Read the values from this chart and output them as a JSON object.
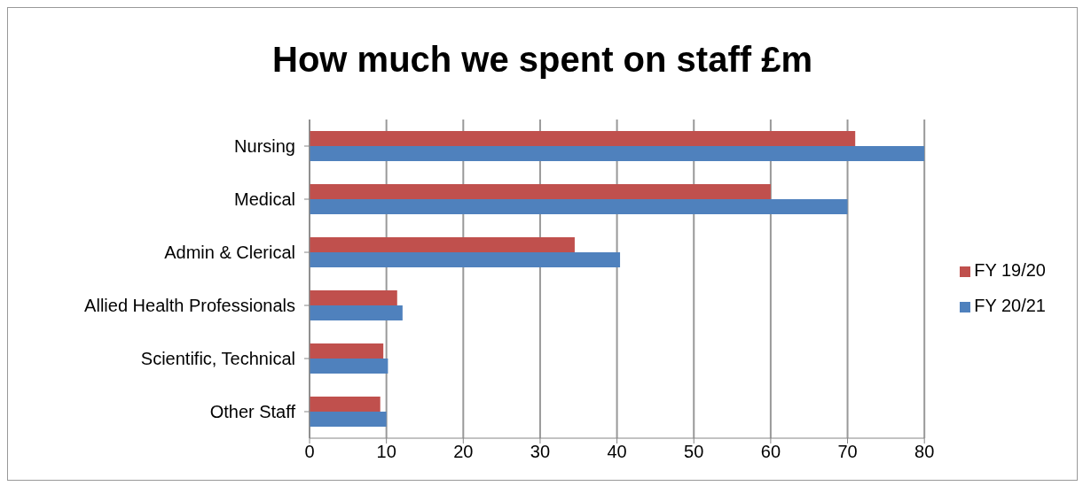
{
  "chart_data": {
    "type": "bar",
    "orientation": "horizontal",
    "title": "How much we spent on staff £m",
    "categories": [
      "Nursing",
      "Medical",
      "Admin & Clerical",
      "Allied Health Professionals",
      "Scientific, Technical",
      "Other Staff"
    ],
    "series": [
      {
        "name": "FY 19/20",
        "color": "#c0504d",
        "values": [
          71,
          60,
          34.5,
          11.4,
          9.6,
          9.2
        ]
      },
      {
        "name": "FY 20/21",
        "color": "#4f81bd",
        "values": [
          80,
          70,
          40.4,
          12.1,
          10.2,
          10
        ]
      }
    ],
    "xlim": [
      0,
      80
    ],
    "xticks": [
      0,
      10,
      20,
      30,
      40,
      50,
      60,
      70,
      80
    ],
    "grid": "x",
    "legend": "right"
  }
}
